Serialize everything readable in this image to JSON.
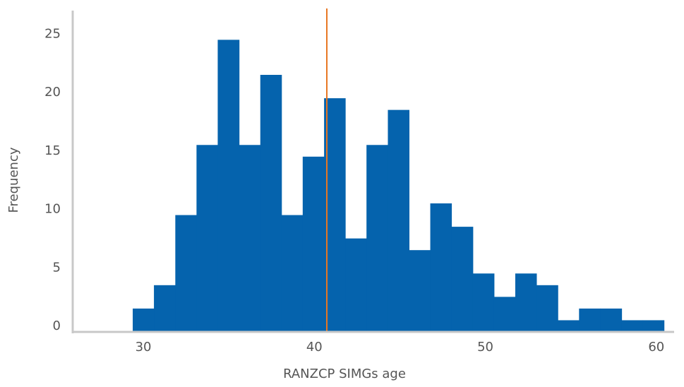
{
  "chart_data": {
    "type": "histogram",
    "x_label": "RANZCP SIMGs age",
    "y_label": "Frequency",
    "bins": [
      29.38,
      30.62,
      31.87,
      33.11,
      34.35,
      35.6,
      36.84,
      38.08,
      39.32,
      40.57,
      41.81,
      43.05,
      44.3,
      45.54,
      46.78,
      48.02,
      49.27,
      50.51,
      51.75,
      52.99,
      54.24,
      55.48,
      56.72,
      57.97,
      59.21,
      60.45
    ],
    "values": [
      2,
      4,
      10,
      16,
      25,
      16,
      22,
      10,
      15,
      20,
      8,
      16,
      19,
      7,
      11,
      9,
      5,
      3,
      5,
      4,
      1,
      2,
      2,
      1,
      1
    ],
    "color": "#0563ad",
    "vline": {
      "value": 40.73,
      "color": "#e87722"
    },
    "xlim": [
      25.87,
      61.04
    ],
    "xticks": [
      30,
      40,
      50,
      60
    ],
    "ylim": [
      0,
      27.5
    ],
    "yticks": [
      0,
      5,
      10,
      15,
      20,
      25
    ],
    "grid": false
  }
}
